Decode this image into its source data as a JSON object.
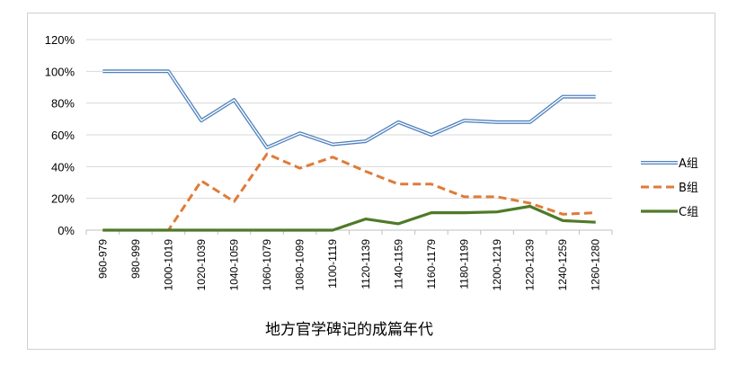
{
  "chart_data": {
    "type": "line",
    "title": "",
    "xlabel": "地方官学碑记的成篇年代",
    "ylabel": "",
    "ylim": [
      0,
      120
    ],
    "yticks": [
      0,
      20,
      40,
      60,
      80,
      100,
      120
    ],
    "ytick_labels": [
      "0%",
      "20%",
      "40%",
      "60%",
      "80%",
      "100%",
      "120%"
    ],
    "categories": [
      "960-979",
      "980-999",
      "1000-1019",
      "1020-1039",
      "1040-1059",
      "1060-1079",
      "1080-1099",
      "1100-1119",
      "1120-1139",
      "1140-1159",
      "1160-1179",
      "1180-1199",
      "1200-1219",
      "1220-1239",
      "1240-1259",
      "1260-1280"
    ],
    "grid": true,
    "legend_position": "right",
    "series": [
      {
        "name": "A组",
        "style": "double",
        "color": "#4f81bd",
        "values": [
          100,
          100,
          100,
          69,
          82,
          52,
          61,
          54,
          56,
          68,
          60,
          69,
          68,
          68,
          84,
          84
        ]
      },
      {
        "name": "B组",
        "style": "dashed",
        "color": "#e07b39",
        "values": [
          0,
          0,
          0,
          31,
          18,
          48,
          39,
          46,
          37,
          29,
          29,
          21,
          21,
          17,
          10,
          11
        ]
      },
      {
        "name": "C组",
        "style": "solid",
        "color": "#4f7a28",
        "values": [
          0,
          0,
          0,
          0,
          0,
          0,
          0,
          0,
          7,
          4,
          11,
          11,
          11.5,
          15,
          6,
          5
        ]
      }
    ]
  }
}
